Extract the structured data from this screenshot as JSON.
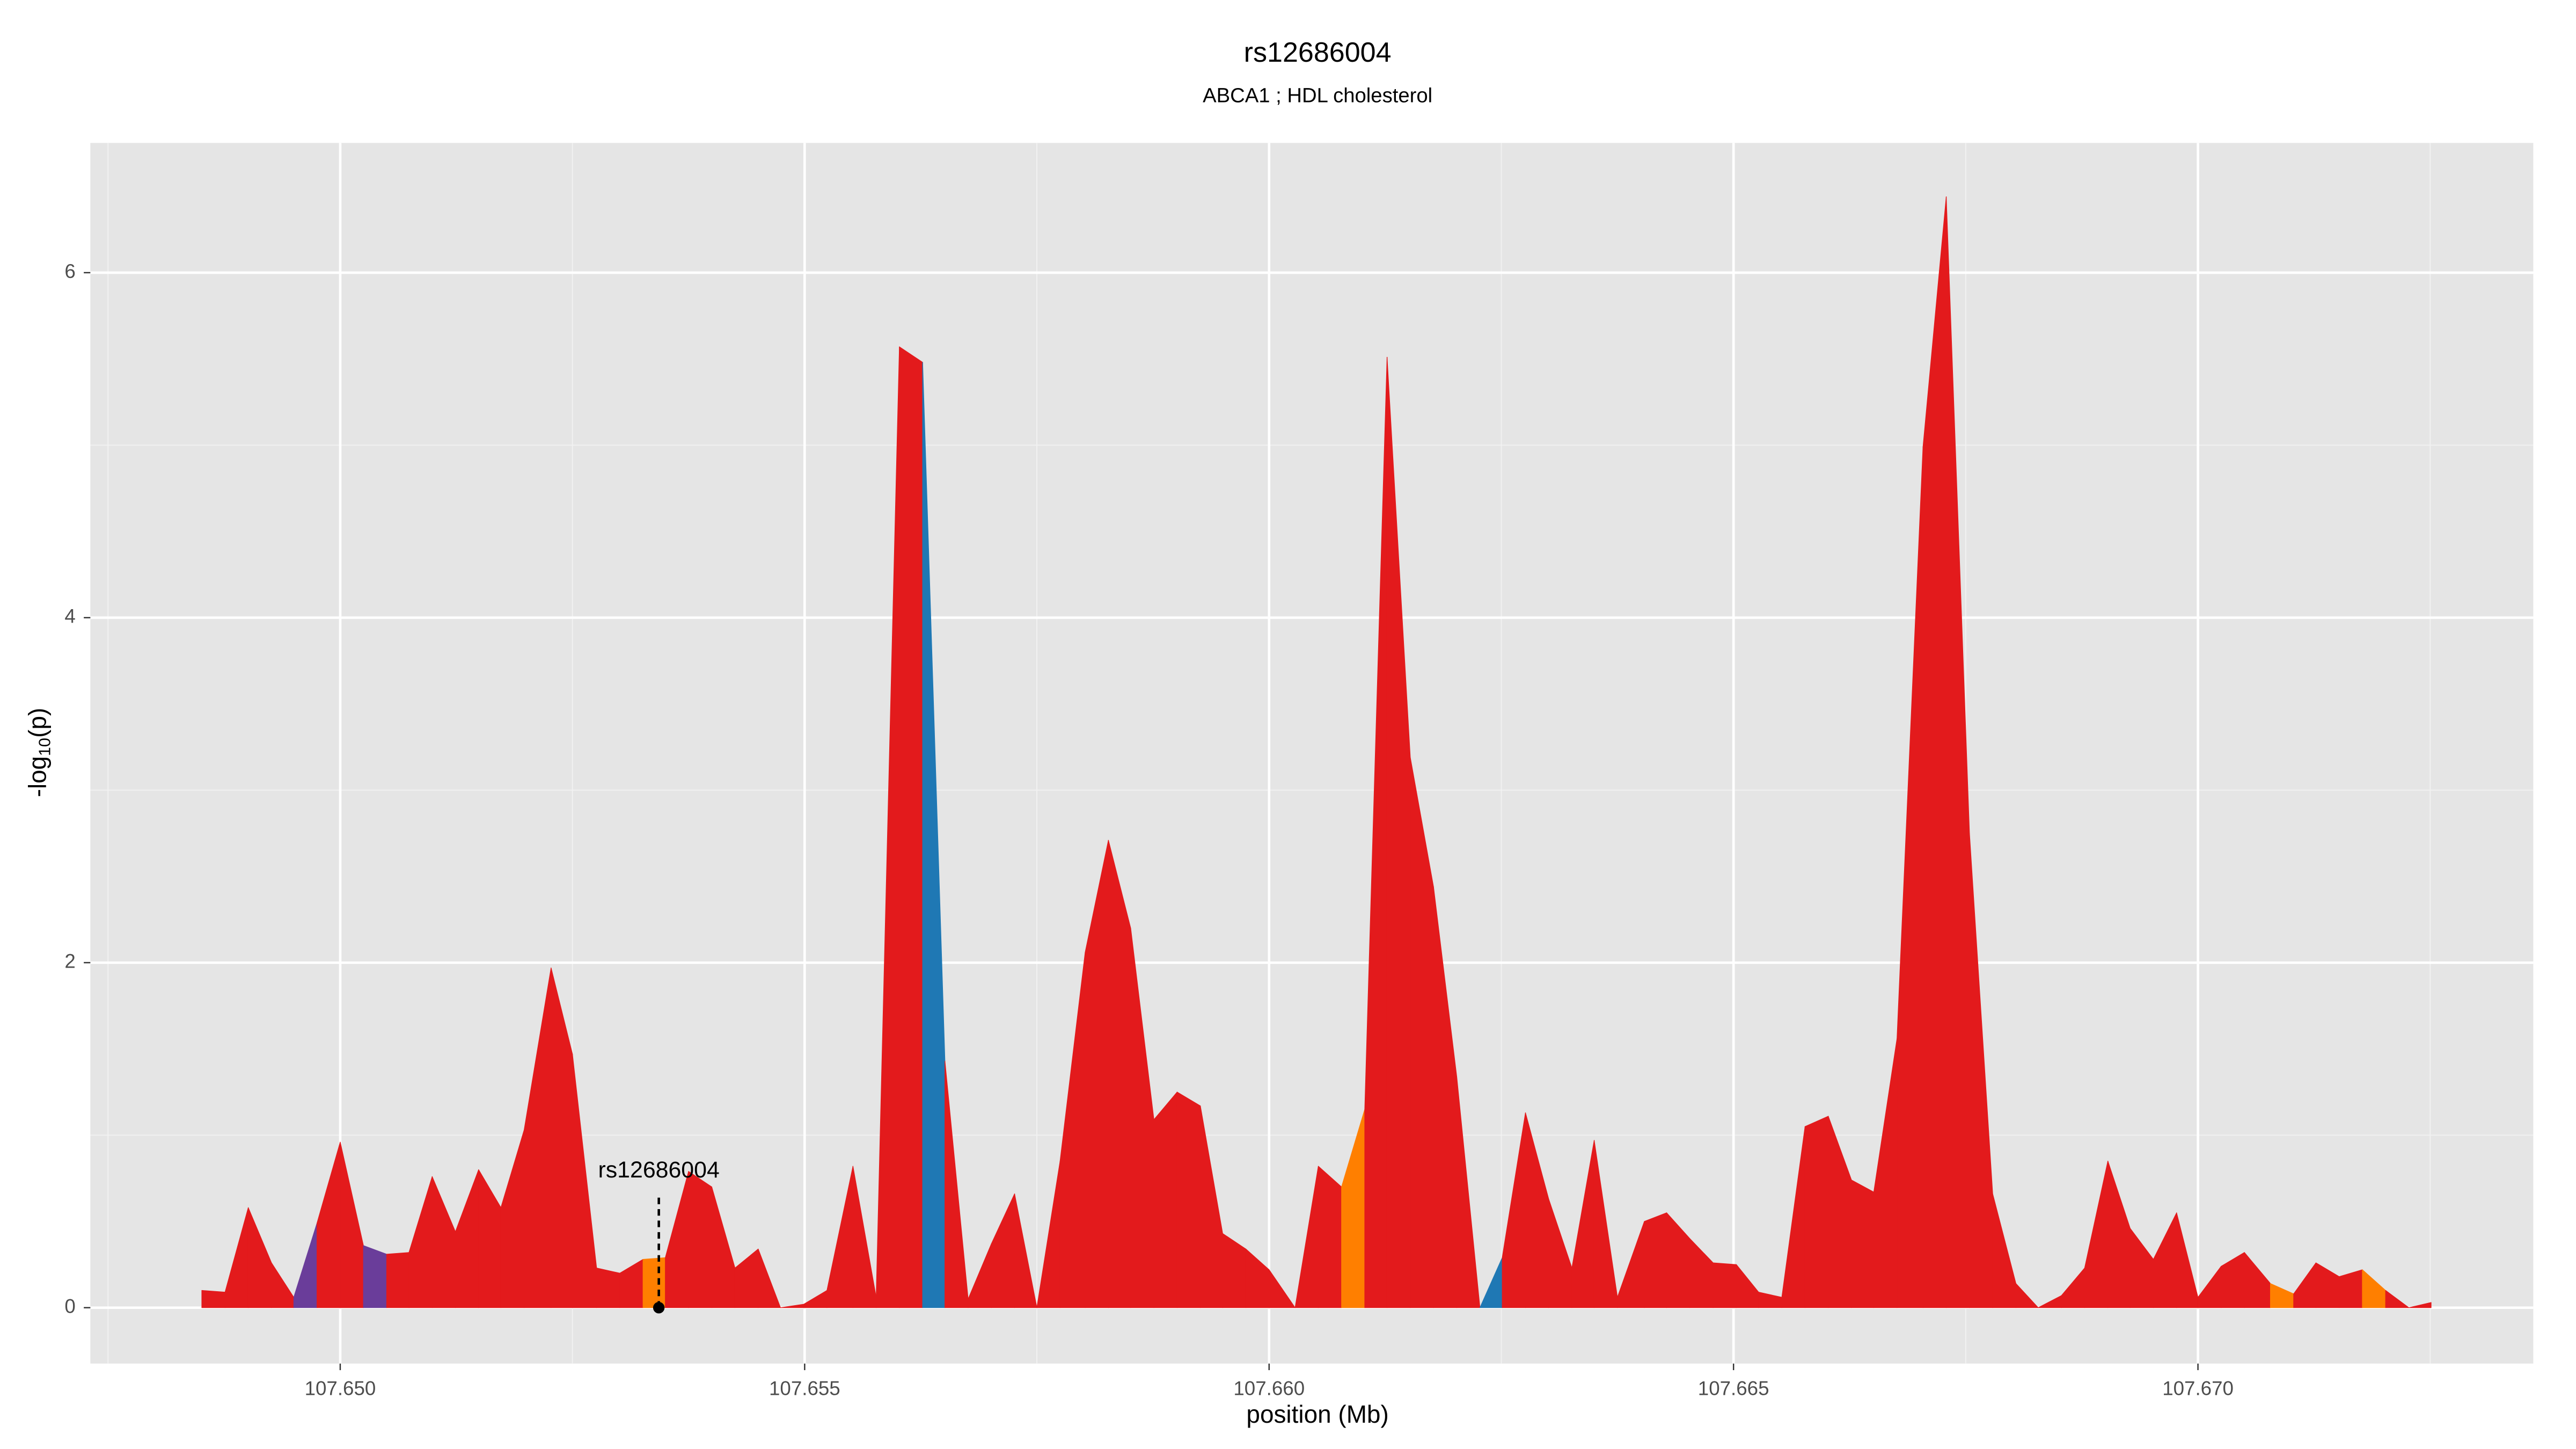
{
  "chart_data": {
    "type": "area",
    "title": "rs12686004",
    "subtitle": "ABCA1 ; HDL cholesterol",
    "xlabel": "position (Mb)",
    "ylabel": [
      "-log",
      "10",
      "(p)"
    ],
    "x": [
      107.64851,
      107.64876,
      107.64901,
      107.64926,
      107.6495,
      107.64975,
      107.65,
      107.65025,
      107.6505,
      107.65074,
      107.65099,
      107.65124,
      107.65149,
      107.65173,
      107.65198,
      107.65227,
      107.6525,
      107.65276,
      107.65301,
      107.65326,
      107.6535,
      107.65375,
      107.654,
      107.65425,
      107.6545,
      107.65474,
      107.65499,
      107.65524,
      107.65552,
      107.65577,
      107.65602,
      107.65627,
      107.65651,
      107.65676,
      107.65701,
      107.65726,
      107.6575,
      107.65775,
      107.65802,
      107.65827,
      107.65851,
      107.65876,
      107.65901,
      107.65926,
      107.6595,
      107.65975,
      107.66,
      107.66028,
      107.66053,
      107.66078,
      107.66103,
      107.66127,
      107.66152,
      107.66177,
      107.66202,
      107.66227,
      107.66251,
      107.66276,
      107.66301,
      107.66326,
      107.6635,
      107.66375,
      107.66404,
      107.66428,
      107.66453,
      107.66478,
      107.66503,
      107.66527,
      107.66552,
      107.66577,
      107.66602,
      107.66627,
      107.66651,
      107.66676,
      107.66704,
      107.66729,
      107.66754,
      107.66779,
      107.66804,
      107.66828,
      107.66853,
      107.66878,
      107.66903,
      107.66927,
      107.66952,
      107.66977,
      107.67,
      107.67025,
      107.6705,
      107.67078,
      107.67103,
      107.67127,
      107.67152,
      107.67177,
      107.67202,
      107.67227,
      107.67251
    ],
    "values": [
      0.1,
      0.09,
      0.58,
      0.26,
      0.06,
      0.49,
      0.96,
      0.36,
      0.31,
      0.32,
      0.76,
      0.44,
      0.8,
      0.58,
      1.03,
      1.97,
      1.47,
      0.23,
      0.2,
      0.28,
      0.29,
      0.79,
      0.7,
      0.23,
      0.34,
      0,
      0.02,
      0.1,
      0.82,
      0.06,
      5.57,
      5.48,
      1.43,
      0.05,
      0.37,
      0.66,
      0,
      0.85,
      2.06,
      2.71,
      2.2,
      1.09,
      1.25,
      1.17,
      0.43,
      0.34,
      0.22,
      0,
      0.82,
      0.7,
      1.15,
      5.51,
      3.19,
      2.44,
      1.34,
      0,
      0.29,
      1.13,
      0.63,
      0.23,
      0.97,
      0.06,
      0.5,
      0.55,
      0.4,
      0.26,
      0.25,
      0.09,
      0.06,
      1.05,
      1.11,
      0.74,
      0.67,
      1.56,
      4.99,
      6.44,
      2.75,
      0.66,
      0.14,
      0,
      0.07,
      0.23,
      0.85,
      0.46,
      0.28,
      0.55,
      0.06,
      0.24,
      0.32,
      0.14,
      0.08,
      0.26,
      0.18,
      0.22,
      0.1,
      0,
      0.03
    ],
    "colors": [
      "#e31a1c",
      "#e31a1c",
      "#e31a1c",
      "#e31a1c",
      "#6a3d9a",
      "#e31a1c",
      "#e31a1c",
      "#6a3d9a",
      "#e31a1c",
      "#e31a1c",
      "#e31a1c",
      "#e31a1c",
      "#e31a1c",
      "#e31a1c",
      "#e31a1c",
      "#e31a1c",
      "#e31a1c",
      "#e31a1c",
      "#e31a1c",
      "#ff7f00",
      "#e31a1c",
      "#e31a1c",
      "#e31a1c",
      "#e31a1c",
      "#e31a1c",
      "#e31a1c",
      "#e31a1c",
      "#e31a1c",
      "#e31a1c",
      "#e31a1c",
      "#e31a1c",
      "#1f78b4",
      "#e31a1c",
      "#e31a1c",
      "#e31a1c",
      "#e31a1c",
      "#e31a1c",
      "#e31a1c",
      "#e31a1c",
      "#e31a1c",
      "#e31a1c",
      "#e31a1c",
      "#e31a1c",
      "#e31a1c",
      "#e31a1c",
      "#e31a1c",
      "#e31a1c",
      "#e31a1c",
      "#e31a1c",
      "#ff7f00",
      "#e31a1c",
      "#e31a1c",
      "#e31a1c",
      "#e31a1c",
      "#e31a1c",
      "#1f78b4",
      "#e31a1c",
      "#e31a1c",
      "#e31a1c",
      "#e31a1c",
      "#e31a1c",
      "#e31a1c",
      "#e31a1c",
      "#e31a1c",
      "#e31a1c",
      "#e31a1c",
      "#e31a1c",
      "#e31a1c",
      "#e31a1c",
      "#e31a1c",
      "#e31a1c",
      "#e31a1c",
      "#e31a1c",
      "#e31a1c",
      "#e31a1c",
      "#e31a1c",
      "#e31a1c",
      "#e31a1c",
      "#e31a1c",
      "#e31a1c",
      "#e31a1c",
      "#e31a1c",
      "#e31a1c",
      "#e31a1c",
      "#e31a1c",
      "#e31a1c",
      "#e31a1c",
      "#e31a1c",
      "#e31a1c",
      "#ff7f00",
      "#e31a1c",
      "#e31a1c",
      "#e31a1c",
      "#ff7f00",
      "#e31a1c",
      "#e31a1c",
      "#e31a1c"
    ],
    "xlim": [
      107.64731,
      107.67361
    ],
    "ylim": [
      -0.324,
      6.752
    ],
    "xticks": [
      {
        "value": 107.65,
        "label": "107.650"
      },
      107.655,
      {
        "value": 107.66,
        "label": "107.660"
      },
      107.665,
      {
        "value": 107.67,
        "label": "107.670"
      }
    ],
    "xminor": [
      107.6475,
      107.6525,
      107.6575,
      107.6625,
      107.6675,
      107.6725
    ],
    "yticks": [
      0,
      2,
      4,
      6
    ],
    "yminor": [
      1,
      3,
      5
    ],
    "grid": true,
    "annotation": {
      "text": "rs12686004",
      "x": 107.65343,
      "y": 0
    }
  }
}
